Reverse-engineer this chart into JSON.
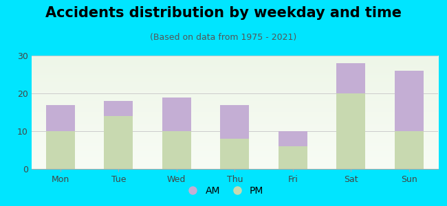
{
  "title": "Accidents distribution by weekday and time",
  "subtitle": "(Based on data from 1975 - 2021)",
  "categories": [
    "Mon",
    "Tue",
    "Wed",
    "Thu",
    "Fri",
    "Sat",
    "Sun"
  ],
  "pm_values": [
    10,
    14,
    10,
    8,
    6,
    20,
    10
  ],
  "am_values": [
    7,
    4,
    9,
    9,
    4,
    8,
    16
  ],
  "am_color": "#c4aed4",
  "pm_color": "#c8d9b0",
  "background_color": "#00e5ff",
  "plot_bg_top": "#eef6e8",
  "plot_bg_bottom": "#f8fcf5",
  "ylim": [
    0,
    30
  ],
  "yticks": [
    0,
    10,
    20,
    30
  ],
  "grid_color": "#cccccc",
  "title_fontsize": 15,
  "subtitle_fontsize": 9,
  "tick_fontsize": 9,
  "legend_fontsize": 10,
  "bar_width": 0.5
}
